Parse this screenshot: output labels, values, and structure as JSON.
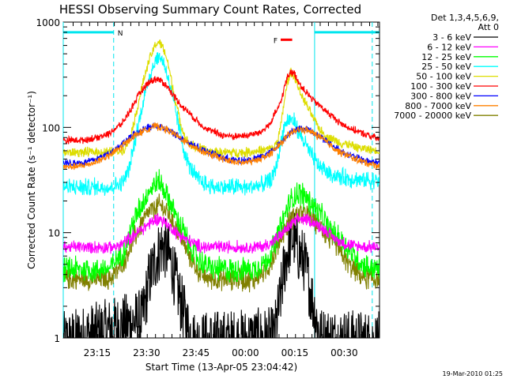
{
  "chart_data": {
    "type": "line",
    "title": "HESSI Observing Summary Count Rates, Corrected",
    "xlabel": "Start Time (13-Apr-05 23:04:42)",
    "ylabel": "Corrected Count Rate (s⁻¹ detector⁻¹)",
    "yscale": "log",
    "ylim": [
      1,
      1000
    ],
    "y_ticks": [
      "1",
      "10",
      "100",
      "1000"
    ],
    "x_unit": "minutes after 23:04:42",
    "xlim": [
      0,
      96
    ],
    "x_ticks": [
      {
        "label": "23:15",
        "x": 10.3
      },
      {
        "label": "23:30",
        "x": 25.3
      },
      {
        "label": "23:45",
        "x": 40.3
      },
      {
        "label": "00:00",
        "x": 55.3
      },
      {
        "label": "00:15",
        "x": 70.3
      },
      {
        "label": "00:30",
        "x": 85.3
      }
    ],
    "legend_header": [
      "Det 1,3,4,5,6,9,",
      "Att 0"
    ],
    "legend_position": "right",
    "series": [
      {
        "name": "3 - 6 keV",
        "color": "#000000",
        "x": [
          0,
          24,
          26,
          28,
          29,
          30,
          31,
          32,
          33,
          34,
          36,
          38,
          40,
          64,
          66,
          67,
          68,
          69,
          70,
          71,
          72,
          73,
          74,
          76,
          78,
          96
        ],
        "y": [
          0.9,
          1.5,
          3.5,
          5.5,
          6.5,
          7.5,
          7.0,
          6.0,
          5.0,
          3.5,
          2.0,
          1.2,
          0.9,
          1.0,
          2.5,
          4.5,
          6.5,
          8.5,
          9.0,
          7.0,
          6.0,
          5.5,
          4.0,
          2.0,
          1.0,
          0.9
        ]
      },
      {
        "name": "6 - 12 keV",
        "color": "#ff00ff",
        "x": [
          0,
          16,
          18,
          20,
          22,
          24,
          26,
          28,
          29,
          30,
          31,
          32,
          34,
          36,
          38,
          40,
          42,
          44,
          58,
          62,
          64,
          66,
          68,
          70,
          71,
          72,
          74,
          76,
          78,
          80,
          82,
          84,
          88,
          92,
          96
        ],
        "y": [
          7.3,
          7.3,
          7.8,
          8.8,
          9.8,
          10.8,
          12.2,
          13.2,
          13.5,
          13.2,
          12.5,
          11.6,
          10.2,
          9.2,
          8.4,
          7.8,
          7.4,
          7.3,
          7.3,
          7.6,
          8.3,
          9.5,
          11.0,
          12.5,
          13.2,
          13.5,
          13.2,
          12.5,
          11.5,
          10.2,
          9.0,
          8.2,
          7.5,
          7.3,
          7.3
        ]
      },
      {
        "name": "12 - 25 keV",
        "color": "#00ff00",
        "x": [
          0,
          14,
          18,
          20,
          22,
          24,
          26,
          28,
          29,
          30,
          31,
          32,
          34,
          36,
          38,
          40,
          42,
          44,
          46,
          58,
          62,
          64,
          66,
          68,
          70,
          72,
          74,
          76,
          78,
          80,
          82,
          84,
          86,
          88,
          90,
          92,
          96
        ],
        "y": [
          4.5,
          4.5,
          6.5,
          9.5,
          14.0,
          19.0,
          25.0,
          29.0,
          30.0,
          28.0,
          25.0,
          21.0,
          15.0,
          11.0,
          8.0,
          6.2,
          5.2,
          4.7,
          4.5,
          4.5,
          5.5,
          7.5,
          11.5,
          17.0,
          22.0,
          24.0,
          21.0,
          18.0,
          15.0,
          12.0,
          10.0,
          8.5,
          7.2,
          6.2,
          5.3,
          4.8,
          4.5
        ]
      },
      {
        "name": "25 - 50 keV",
        "color": "#00ffff",
        "x": [
          0,
          14,
          18,
          20,
          22,
          24,
          26,
          28,
          29,
          30,
          31,
          32,
          34,
          36,
          37,
          38,
          40,
          42,
          44,
          46,
          50,
          56,
          60,
          63,
          64,
          65,
          66,
          67,
          68,
          69,
          70,
          71,
          72,
          74,
          76,
          78,
          80,
          82,
          86,
          90,
          96
        ],
        "y": [
          27,
          27,
          30,
          40,
          80,
          160,
          300,
          430,
          470,
          440,
          370,
          280,
          150,
          75,
          55,
          45,
          35,
          30,
          28,
          27,
          27,
          27,
          28,
          31,
          36,
          48,
          70,
          100,
          115,
          120,
          115,
          100,
          85,
          65,
          50,
          42,
          38,
          35,
          33,
          32,
          31
        ]
      },
      {
        "name": "50 - 100 keV",
        "color": "#dddd00",
        "x": [
          0,
          14,
          18,
          20,
          22,
          24,
          26,
          28,
          29,
          30,
          31,
          32,
          34,
          36,
          37,
          38,
          40,
          42,
          44,
          46,
          50,
          56,
          60,
          64,
          65,
          66,
          67,
          68,
          69,
          70,
          71,
          72,
          74,
          76,
          78,
          80,
          84,
          88,
          92,
          96
        ],
        "y": [
          58,
          58,
          60,
          75,
          130,
          250,
          430,
          610,
          650,
          600,
          500,
          380,
          180,
          100,
          80,
          72,
          65,
          62,
          60,
          59,
          58,
          58,
          60,
          64,
          75,
          100,
          170,
          260,
          330,
          310,
          260,
          210,
          160,
          120,
          95,
          82,
          72,
          66,
          62,
          60
        ]
      },
      {
        "name": "100 - 300 keV",
        "color": "#ff0000",
        "x": [
          0,
          6,
          10,
          14,
          18,
          20,
          22,
          24,
          26,
          28,
          30,
          32,
          34,
          36,
          38,
          40,
          42,
          44,
          48,
          52,
          56,
          60,
          63,
          64,
          66,
          67,
          68,
          69,
          70,
          71,
          72,
          74,
          76,
          78,
          80,
          82,
          84,
          88,
          92,
          96
        ],
        "y": [
          75,
          76,
          80,
          88,
          110,
          140,
          180,
          230,
          270,
          290,
          275,
          235,
          190,
          160,
          140,
          120,
          105,
          95,
          85,
          82,
          84,
          90,
          110,
          130,
          170,
          230,
          300,
          340,
          330,
          290,
          250,
          210,
          180,
          160,
          140,
          125,
          110,
          95,
          85,
          78
        ]
      },
      {
        "name": "300 - 800 keV",
        "color": "#0000ff",
        "x": [
          0,
          6,
          10,
          14,
          18,
          22,
          26,
          28,
          30,
          32,
          34,
          38,
          42,
          46,
          50,
          54,
          58,
          62,
          64,
          66,
          68,
          70,
          72,
          74,
          76,
          78,
          80,
          82,
          84,
          88,
          92,
          96
        ],
        "y": [
          46,
          46,
          50,
          57,
          70,
          88,
          100,
          104,
          100,
          94,
          86,
          72,
          62,
          55,
          50,
          48,
          50,
          56,
          62,
          72,
          84,
          94,
          98,
          96,
          90,
          82,
          74,
          66,
          60,
          53,
          48,
          46
        ]
      },
      {
        "name": "800 - 7000 keV",
        "color": "#ff8000",
        "x": [
          0,
          6,
          10,
          14,
          18,
          22,
          26,
          28,
          30,
          32,
          34,
          38,
          42,
          46,
          50,
          54,
          58,
          62,
          64,
          66,
          68,
          70,
          72,
          74,
          76,
          78,
          80,
          82,
          84,
          88,
          92,
          96
        ],
        "y": [
          42,
          43,
          47,
          54,
          67,
          85,
          98,
          103,
          99,
          93,
          85,
          70,
          60,
          53,
          48,
          46,
          48,
          54,
          60,
          70,
          82,
          92,
          96,
          94,
          88,
          80,
          72,
          64,
          58,
          51,
          46,
          43
        ]
      },
      {
        "name": "7000 - 20000 keV",
        "color": "#808000",
        "x": [
          0,
          14,
          18,
          20,
          22,
          24,
          26,
          28,
          29,
          30,
          31,
          32,
          34,
          36,
          38,
          40,
          42,
          44,
          46,
          58,
          62,
          64,
          66,
          68,
          70,
          72,
          74,
          76,
          78,
          80,
          82,
          84,
          86,
          88,
          90,
          92,
          96
        ],
        "y": [
          3.6,
          3.6,
          5.0,
          7.0,
          9.5,
          12.5,
          15.5,
          17.5,
          18.0,
          17.5,
          16.5,
          15.0,
          11.5,
          8.5,
          6.2,
          4.8,
          4.0,
          3.7,
          3.6,
          3.6,
          4.5,
          6.2,
          9.0,
          12.0,
          14.5,
          15.5,
          15.0,
          13.5,
          11.5,
          9.5,
          8.0,
          6.5,
          5.3,
          4.5,
          4.0,
          3.7,
          3.6
        ]
      }
    ],
    "annotations": [
      {
        "label": "N",
        "color": "#00e5ee",
        "kind": "bar",
        "x_start": 0,
        "x_end": 15.3,
        "y": 800
      },
      {
        "label": "",
        "color": "#00e5ee",
        "kind": "bar",
        "x_start": 76.3,
        "x_end": 96,
        "y": 800
      },
      {
        "label": "F",
        "color": "#ff0000",
        "kind": "bar",
        "x_start": 66.0,
        "x_end": 69.5,
        "y": 680
      }
    ],
    "vlines": [
      {
        "x": 0,
        "color": "#00e5ee",
        "style": "solid"
      },
      {
        "x": 15.3,
        "color": "#00e5ee",
        "style": "dashed"
      },
      {
        "x": 76.3,
        "color": "#00e5ee",
        "style": "solid"
      },
      {
        "x": 93.8,
        "color": "#00e5ee",
        "style": "dashed"
      }
    ],
    "footer": "19-Mar-2010 01:25"
  }
}
